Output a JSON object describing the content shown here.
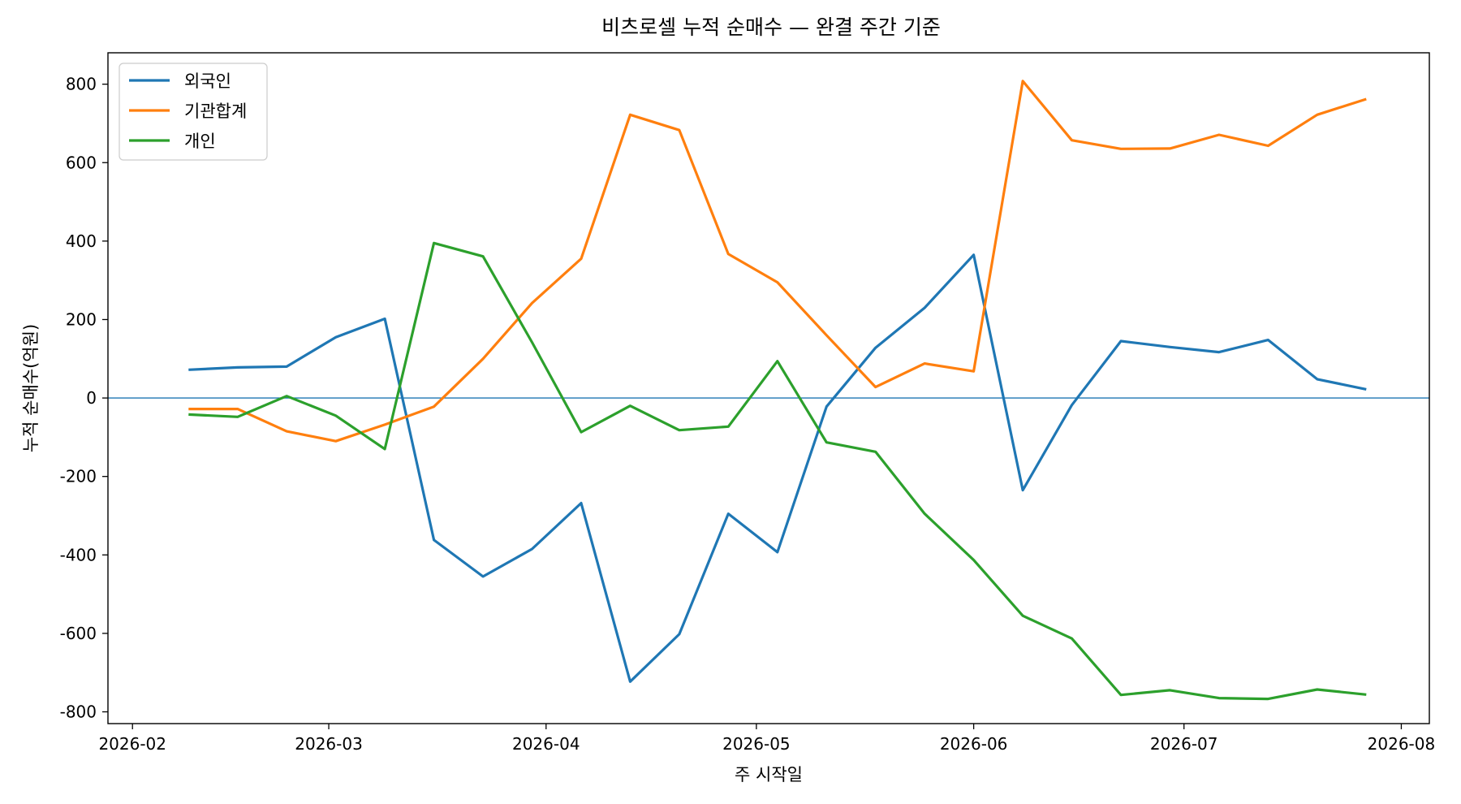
{
  "chart_data": {
    "type": "line",
    "title": "비츠로셀 누적 순매수 — 완결 주간 기준",
    "xlabel": "주 시작일",
    "ylabel": "누적 순매수(억원)",
    "x_type": "date",
    "xlim": [
      "2026-02-01",
      "2026-08-01"
    ],
    "ylim": [
      -830,
      880
    ],
    "x_ticks": [
      "2026-02",
      "2026-03",
      "2026-04",
      "2026-05",
      "2026-06",
      "2026-07",
      "2026-08"
    ],
    "y_ticks": [
      -800,
      -600,
      -400,
      -200,
      0,
      200,
      400,
      600,
      800
    ],
    "grid": false,
    "legend_position": "top-left",
    "zero_line": {
      "value": 0,
      "color": "#1f77b4"
    },
    "x": [
      "2026-02-09",
      "2026-02-16",
      "2026-02-23",
      "2026-03-02",
      "2026-03-09",
      "2026-03-16",
      "2026-03-23",
      "2026-03-30",
      "2026-04-06",
      "2026-04-13",
      "2026-04-20",
      "2026-04-27",
      "2026-05-04",
      "2026-05-11",
      "2026-05-18",
      "2026-05-25",
      "2026-06-01",
      "2026-06-08",
      "2026-06-15",
      "2026-06-22",
      "2026-06-29",
      "2026-07-06",
      "2026-07-13",
      "2026-07-20",
      "2026-07-27"
    ],
    "series": [
      {
        "name": "외국인",
        "color": "#1f77b4",
        "values": [
          72,
          78,
          80,
          155,
          202,
          -362,
          -455,
          -385,
          -268,
          -723,
          -602,
          -295,
          -393,
          -22,
          128,
          230,
          365,
          -235,
          -18,
          145,
          130,
          117,
          148,
          48,
          22
        ]
      },
      {
        "name": "기관합계",
        "color": "#ff7f0e",
        "values": [
          -28,
          -28,
          -85,
          -110,
          -68,
          -22,
          100,
          242,
          355,
          722,
          683,
          367,
          295,
          160,
          28,
          88,
          68,
          808,
          657,
          635,
          636,
          671,
          643,
          722,
          762
        ]
      },
      {
        "name": "개인",
        "color": "#2ca02c",
        "values": [
          -42,
          -48,
          5,
          -45,
          -130,
          395,
          361,
          142,
          -87,
          -20,
          -82,
          -73,
          94,
          -113,
          -137,
          -295,
          -413,
          -555,
          -613,
          -757,
          -745,
          -765,
          -767,
          -743,
          -756
        ]
      }
    ]
  }
}
